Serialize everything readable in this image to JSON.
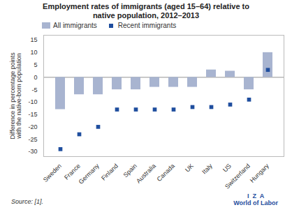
{
  "chart_data": {
    "type": "bar",
    "title": "Employment rates of immigrants (aged 15–64) relative to\nnative population, 2012–2013",
    "ylabel": "Difference in percentage points\nwith the native-born population",
    "annotations": [
      "Source: [1].",
      "I  Z  A",
      "World of Labor"
    ],
    "categories": [
      "Sweden",
      "France",
      "Germany",
      "Finland",
      "Spain",
      "Australia",
      "Canada",
      "UK",
      "Italy",
      "US",
      "Switzerland",
      "Hungary"
    ],
    "series": [
      {
        "name": "All immigrants",
        "type": "bar",
        "color": "#a8b4d0",
        "values": [
          -13,
          -7,
          -7,
          -5,
          -5,
          -4,
          -4,
          -4,
          3,
          2.5,
          -5,
          10
        ]
      },
      {
        "name": "Recent immigrants",
        "type": "scatter",
        "marker": "square",
        "color": "#1f4e9e",
        "values": [
          -29,
          -23,
          -20,
          -13,
          -13,
          -13,
          -13,
          -12,
          -12,
          -11,
          -9,
          3
        ]
      }
    ],
    "ylim": [
      -32,
      17
    ],
    "yticks": [
      -30,
      -25,
      -20,
      -15,
      -10,
      -5,
      0,
      5,
      10,
      15
    ],
    "grid": false,
    "legend": "upper left"
  }
}
